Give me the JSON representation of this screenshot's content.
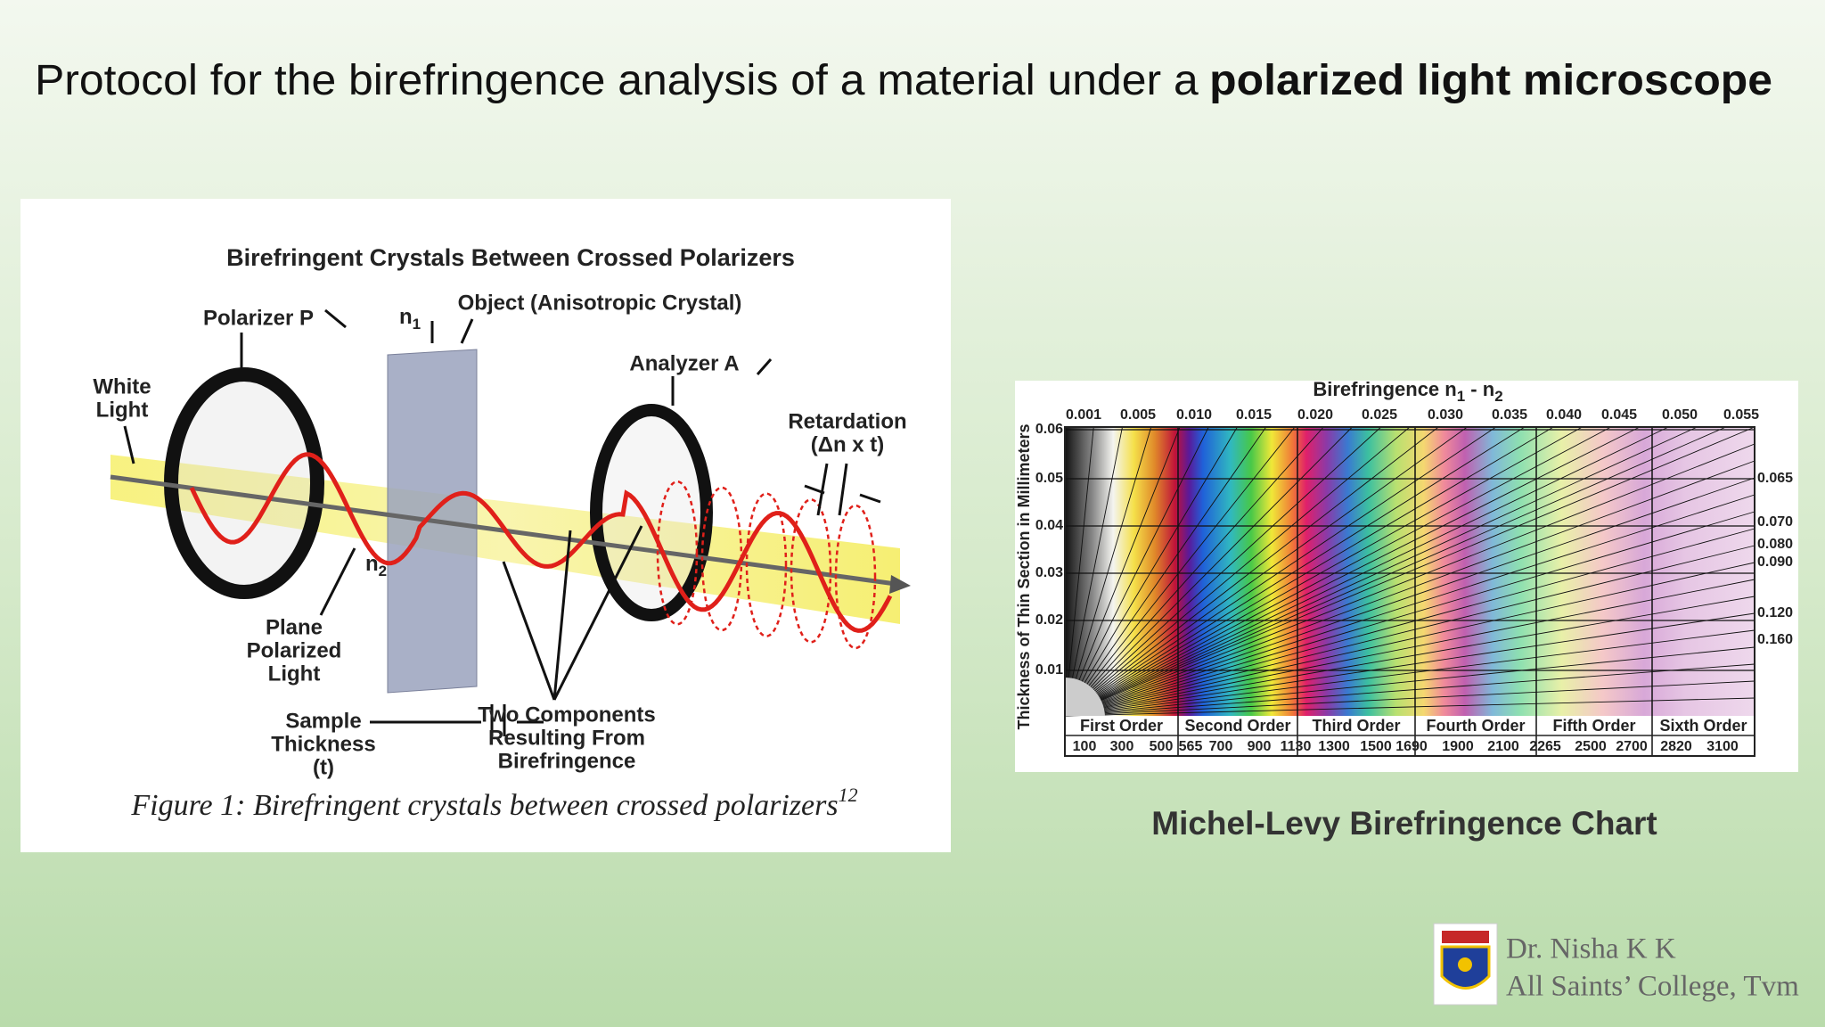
{
  "slide": {
    "title": {
      "text": "Protocol for the birefringence analysis of a material under a",
      "bold": "polarized light microscope"
    },
    "figure": {
      "heading": "Birefringent Crystals Between Crossed Polarizers",
      "labels": [
        {
          "lines": [
            "Polarizer P"
          ]
        },
        {
          "lines": [
            "Object (Anisotropic Crystal)"
          ]
        },
        {
          "lines": [
            "White",
            "Light"
          ]
        },
        {
          "lines": [
            "Analyzer A"
          ]
        },
        {
          "lines": [
            "Retardation",
            "(Δn x t)"
          ]
        },
        {
          "lines": [
            "Plane",
            "Polarized",
            "Light"
          ]
        },
        {
          "lines": [
            "Sample",
            "Thickness",
            "(t)"
          ]
        },
        {
          "lines": [
            "Two Components",
            "Resulting From",
            "Birefringence"
          ]
        }
      ],
      "n1": {
        "symbol": "n",
        "sub": "1"
      },
      "n2": {
        "symbol": "n",
        "sub": "2"
      },
      "caption": "Figure 1: Birefringent crystals between crossed polarizers",
      "caption_ref": "12"
    },
    "chart": {
      "title": {
        "text": "Birefringence n",
        "sub1": "1",
        "mid": " - n",
        "sub2": "2"
      },
      "y_axis_title": "Thickness of Thin Section in Millimeters",
      "top_scale": [
        "0.001",
        "0.005",
        "0.010",
        "0.015",
        "0.020",
        "0.025",
        "0.030",
        "0.035",
        "0.040",
        "0.045",
        "0.050",
        "0.055"
      ],
      "left_scale": [
        "0.06",
        "0.05",
        "0.04",
        "0.03",
        "0.02",
        "0.01"
      ],
      "right_scale": [
        "0.065",
        "0.070",
        "0.080",
        "0.090",
        "0.120",
        "0.160"
      ],
      "orders": [
        "First Order",
        "Second Order",
        "Third Order",
        "Fourth Order",
        "Fifth Order",
        "Sixth Order"
      ],
      "retardation": [
        "100",
        "300",
        "500",
        "565",
        "700",
        "900",
        "1130",
        "1300",
        "1500",
        "1690",
        "1900",
        "2100",
        "2265",
        "2500",
        "2700",
        "2820",
        "3100"
      ],
      "caption": "Michel-Levy Birefringence Chart"
    },
    "footer": {
      "author": "Dr. Nisha K K",
      "college": "All Saints’ College, Tvm"
    }
  }
}
